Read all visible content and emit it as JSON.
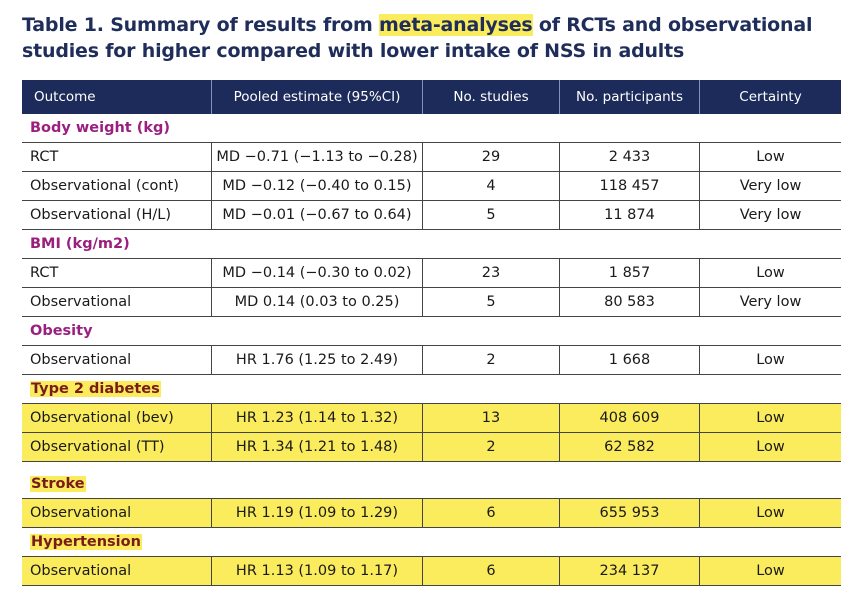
{
  "title": {
    "part1": "Table 1. Summary of results from ",
    "highlight": "meta-analyses",
    "part2": " of RCTs and observational studies for higher compared with lower intake of NSS in adults"
  },
  "headers": [
    "Outcome",
    "Pooled estimate (95%CI)",
    "No. studies",
    "No. participants",
    "Certainty"
  ],
  "highlight_color": "#fbec5d",
  "header_color": "#1c2b5a",
  "sections": [
    {
      "label": "Body weight (kg)",
      "highlighted": false,
      "rows": [
        {
          "outcome": "RCT",
          "estimate": "MD −0.71 (−1.13 to −0.28)",
          "studies": "29",
          "participants": "2 433",
          "certainty": "Low"
        },
        {
          "outcome": "Observational (cont)",
          "estimate": "MD −0.12 (−0.40 to 0.15)",
          "studies": "4",
          "participants": "118 457",
          "certainty": "Very low"
        },
        {
          "outcome": "Observational (H/L)",
          "estimate": "MD −0.01 (−0.67 to 0.64)",
          "studies": "5",
          "participants": "11 874",
          "certainty": "Very low"
        }
      ]
    },
    {
      "label": "BMI (kg/m2)",
      "highlighted": false,
      "rows": [
        {
          "outcome": "RCT",
          "estimate": "MD −0.14 (−0.30 to 0.02)",
          "studies": "23",
          "participants": "1 857",
          "certainty": "Low"
        },
        {
          "outcome": "Observational",
          "estimate": "MD 0.14 (0.03 to 0.25)",
          "studies": "5",
          "participants": "80 583",
          "certainty": "Very low"
        }
      ]
    },
    {
      "label": "Obesity",
      "highlighted": false,
      "rows": [
        {
          "outcome": "Observational",
          "estimate": "HR 1.76 (1.25 to 2.49)",
          "studies": "2",
          "participants": "1 668",
          "certainty": "Low"
        }
      ]
    },
    {
      "label": "Type 2 diabetes",
      "highlighted": true,
      "rows": [
        {
          "outcome": "Observational (bev)",
          "estimate": "HR 1.23 (1.14 to 1.32)",
          "studies": "13",
          "participants": "408 609",
          "certainty": "Low"
        },
        {
          "outcome": "Observational (TT)",
          "estimate": "HR 1.34 (1.21 to 1.48)",
          "studies": "2",
          "participants": "62 582",
          "certainty": "Low"
        }
      ]
    },
    {
      "label": "Stroke",
      "highlighted": true,
      "rows": [
        {
          "outcome": "Observational",
          "estimate": "HR 1.19 (1.09 to 1.29)",
          "studies": "6",
          "participants": "655 953",
          "certainty": "Low"
        }
      ]
    },
    {
      "label": "Hypertension",
      "highlighted": true,
      "rows": [
        {
          "outcome": "Observational",
          "estimate": "HR 1.13 (1.09 to 1.17)",
          "studies": "6",
          "participants": "234 137",
          "certainty": "Low"
        }
      ]
    }
  ]
}
